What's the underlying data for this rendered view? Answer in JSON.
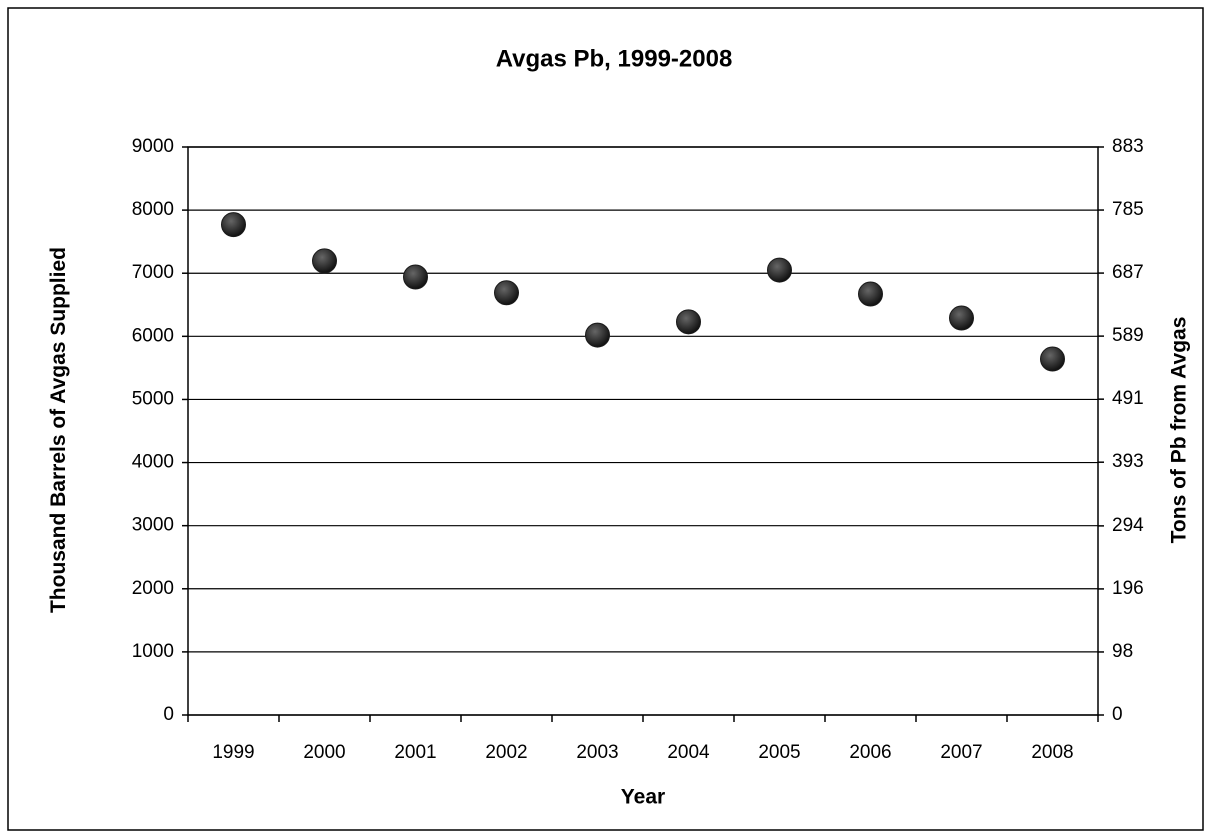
{
  "chart_data": {
    "type": "scatter",
    "title": "Avgas Pb, 1999-2008",
    "x_label": "Year",
    "y_label": "Thousand Barrels of Avgas Supplied",
    "y2_label": "Tons of Pb from Avgas",
    "categories": [
      "1999",
      "2000",
      "2001",
      "2002",
      "2003",
      "2004",
      "2005",
      "2006",
      "2007",
      "2008"
    ],
    "values": [
      7770,
      7195,
      6940,
      6690,
      6020,
      6230,
      7050,
      6670,
      6290,
      5640
    ],
    "color": "#1a1a1a",
    "ylim": [
      0,
      9000
    ],
    "yticks": [
      0,
      1000,
      2000,
      3000,
      4000,
      5000,
      6000,
      7000,
      8000,
      9000
    ],
    "y2lim": [
      0,
      883
    ],
    "y2ticks": [
      0,
      98,
      196,
      294,
      393,
      491,
      589,
      687,
      785,
      883
    ],
    "grid": true
  }
}
